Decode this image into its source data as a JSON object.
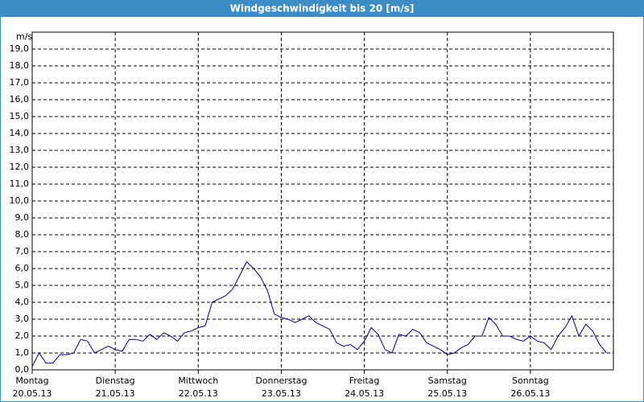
{
  "chart_data": {
    "type": "line",
    "title": "Windgeschwindigkeit bis 20 [m/s]",
    "y_label": "m/s",
    "grid": true,
    "ylim": [
      0,
      20
    ],
    "yticks": [
      {
        "value": 0,
        "label": "0,0"
      },
      {
        "value": 1,
        "label": "1,0"
      },
      {
        "value": 2,
        "label": "2,0"
      },
      {
        "value": 3,
        "label": "3,0"
      },
      {
        "value": 4,
        "label": "4,0"
      },
      {
        "value": 5,
        "label": "5,0"
      },
      {
        "value": 6,
        "label": "6,0"
      },
      {
        "value": 7,
        "label": "7,0"
      },
      {
        "value": 8,
        "label": "8,0"
      },
      {
        "value": 9,
        "label": "9,0"
      },
      {
        "value": 10,
        "label": "10,0"
      },
      {
        "value": 11,
        "label": "11,0"
      },
      {
        "value": 12,
        "label": "12,0"
      },
      {
        "value": 13,
        "label": "13,0"
      },
      {
        "value": 14,
        "label": "14,0"
      },
      {
        "value": 15,
        "label": "15,0"
      },
      {
        "value": 16,
        "label": "16,0"
      },
      {
        "value": 17,
        "label": "17,0"
      },
      {
        "value": 18,
        "label": "18,0"
      },
      {
        "value": 19,
        "label": "19,0"
      }
    ],
    "xlim": [
      0,
      168
    ],
    "xticks": [
      {
        "value": 0,
        "label": "Montag",
        "date": "20.05.13"
      },
      {
        "value": 24,
        "label": "Dienstag",
        "date": "21.05.13"
      },
      {
        "value": 48,
        "label": "Mittwoch",
        "date": "22.05.13"
      },
      {
        "value": 72,
        "label": "Donnerstag",
        "date": "23.05.13"
      },
      {
        "value": 96,
        "label": "Freitag",
        "date": "24.05.13"
      },
      {
        "value": 120,
        "label": "Samstag",
        "date": "25.05.13"
      },
      {
        "value": 144,
        "label": "Sonntag",
        "date": "26.05.13"
      }
    ],
    "x": [
      0,
      2,
      4,
      6,
      8,
      10,
      12,
      14,
      16,
      18,
      20,
      22,
      24,
      26,
      28,
      30,
      32,
      34,
      36,
      38,
      40,
      42,
      44,
      46,
      48,
      50,
      52,
      54,
      56,
      58,
      60,
      62,
      64,
      66,
      68,
      70,
      72,
      74,
      76,
      78,
      80,
      82,
      84,
      86,
      88,
      90,
      92,
      94,
      96,
      98,
      100,
      102,
      104,
      106,
      108,
      110,
      112,
      114,
      116,
      118,
      120,
      122,
      124,
      126,
      128,
      130,
      132,
      134,
      136,
      138,
      140,
      142,
      144,
      146,
      148,
      150,
      152,
      154,
      156,
      158,
      160,
      162,
      164,
      166
    ],
    "series": [
      {
        "color": "#00008b",
        "values": [
          0.2,
          1.0,
          0.4,
          0.4,
          0.9,
          0.9,
          1.0,
          1.8,
          1.7,
          1.0,
          1.2,
          1.4,
          1.2,
          1.1,
          1.8,
          1.8,
          1.7,
          2.1,
          1.8,
          2.2,
          2.0,
          1.7,
          2.2,
          2.3,
          2.5,
          2.6,
          4.0,
          4.2,
          4.4,
          4.8,
          5.6,
          6.4,
          6.0,
          5.5,
          4.7,
          3.3,
          3.1,
          3.0,
          2.8,
          3.0,
          3.2,
          2.8,
          2.6,
          2.4,
          1.6,
          1.4,
          1.5,
          1.2,
          1.7,
          2.5,
          2.1,
          1.2,
          1.0,
          2.1,
          2.0,
          2.4,
          2.2,
          1.6,
          1.4,
          1.2,
          0.9,
          1.0,
          1.3,
          1.5,
          2.0,
          2.0,
          3.1,
          2.7,
          2.0,
          2.0,
          1.8,
          1.7,
          2.0,
          1.7,
          1.6,
          1.2,
          2.0,
          2.5,
          3.2,
          2.0,
          2.7,
          2.3,
          1.5,
          1.0
        ]
      }
    ]
  }
}
